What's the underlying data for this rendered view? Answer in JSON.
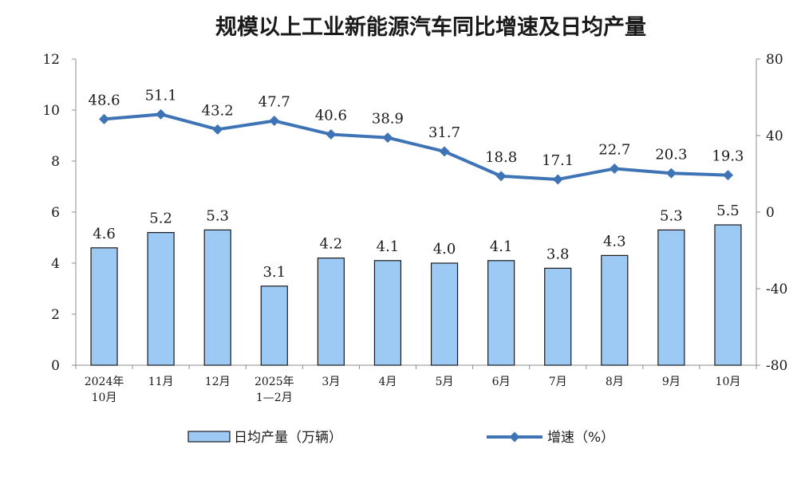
{
  "chart_data": {
    "type": "bar",
    "title": "规模以上工业新能源汽车同比增速及日均产量",
    "categories": [
      [
        "2024年",
        "10月"
      ],
      [
        "11月"
      ],
      [
        "12月"
      ],
      [
        "2025年",
        "1—2月"
      ],
      [
        "3月"
      ],
      [
        "4月"
      ],
      [
        "5月"
      ],
      [
        "6月"
      ],
      [
        "7月"
      ],
      [
        "8月"
      ],
      [
        "9月"
      ],
      [
        "10月"
      ]
    ],
    "series": [
      {
        "name": "日均产量（万辆）",
        "type": "bar",
        "axis": "left",
        "values": [
          4.6,
          5.2,
          5.3,
          3.1,
          4.2,
          4.1,
          4.0,
          4.1,
          3.8,
          4.3,
          5.3,
          5.5
        ],
        "labels": [
          "4.6",
          "5.2",
          "5.3",
          "3.1",
          "4.2",
          "4.1",
          "4.0",
          "4.1",
          "3.8",
          "4.3",
          "5.3",
          "5.5"
        ],
        "color": "#9dc9f5",
        "edge_color": "#1a1a1a"
      },
      {
        "name": "增速（%）",
        "type": "line",
        "axis": "right",
        "values": [
          48.6,
          51.1,
          43.2,
          47.7,
          40.6,
          38.9,
          31.7,
          18.8,
          17.1,
          22.7,
          20.3,
          19.3
        ],
        "labels": [
          "48.6",
          "51.1",
          "43.2",
          "47.7",
          "40.6",
          "38.9",
          "31.7",
          "18.8",
          "17.1",
          "22.7",
          "20.3",
          "19.3"
        ],
        "color": "#3e74b6",
        "marker": "diamond"
      }
    ],
    "left_axis": {
      "range": [
        0,
        12
      ],
      "ticks": [
        0,
        2,
        4,
        6,
        8,
        10,
        12
      ]
    },
    "right_axis": {
      "range": [
        -80,
        80
      ],
      "ticks": [
        -80,
        -40,
        0,
        40,
        80
      ]
    },
    "grid": false,
    "legend_position": "bottom"
  }
}
